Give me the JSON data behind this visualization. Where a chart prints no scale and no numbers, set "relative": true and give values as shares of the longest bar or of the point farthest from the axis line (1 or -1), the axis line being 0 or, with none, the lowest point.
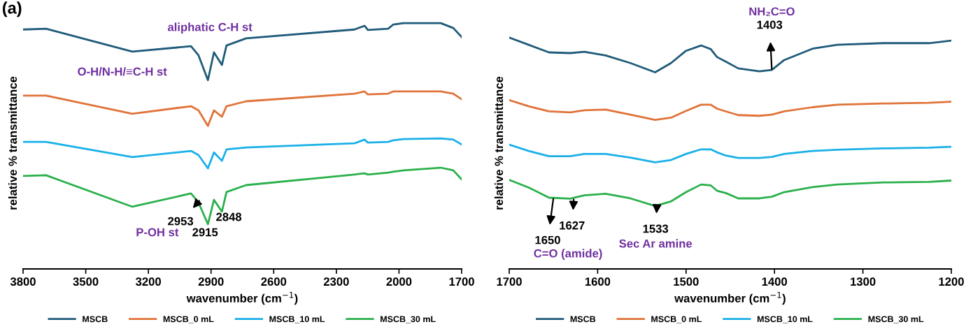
{
  "chart_data": [
    {
      "type": "line",
      "title": "(a)",
      "xlabel": "wavenumber (cm$^{−1}$)",
      "ylabel": "relative % transmittance",
      "relative": true,
      "legend": "bottom",
      "tick_labels": "x",
      "grid": false,
      "x": [
        3800,
        3690,
        3277,
        2996,
        2960,
        2915,
        2886,
        2848,
        2826,
        2732,
        2213,
        2165,
        2149,
        2052,
        2028,
        1978,
        1800,
        1740,
        1700
      ],
      "xlim": [
        3800,
        1700
      ],
      "xticks": [
        3800,
        3500,
        3200,
        2900,
        2600,
        2300,
        2000,
        1700
      ],
      "series": [
        {
          "name": "MSCB",
          "color": "#1f5b7a",
          "values": [
            0.974,
            0.977,
            0.884,
            0.906,
            0.869,
            0.768,
            0.881,
            0.83,
            0.909,
            0.938,
            0.974,
            0.989,
            0.972,
            0.977,
            0.994,
            1.0,
            1.0,
            0.98,
            0.943
          ]
        },
        {
          "name": "MSCB_0 mL",
          "color": "#e0733a",
          "values": [
            0.705,
            0.705,
            0.631,
            0.662,
            0.645,
            0.582,
            0.645,
            0.619,
            0.662,
            0.682,
            0.713,
            0.722,
            0.71,
            0.713,
            0.722,
            0.722,
            0.722,
            0.713,
            0.69
          ]
        },
        {
          "name": "MSCB_10 mL",
          "color": "#1ab0e8",
          "values": [
            0.517,
            0.517,
            0.455,
            0.48,
            0.463,
            0.409,
            0.474,
            0.44,
            0.486,
            0.494,
            0.511,
            0.526,
            0.514,
            0.517,
            0.523,
            0.528,
            0.531,
            0.526,
            0.506
          ]
        },
        {
          "name": "MSCB_30 mL",
          "color": "#2bb04c",
          "values": [
            0.378,
            0.381,
            0.253,
            0.307,
            0.27,
            0.182,
            0.281,
            0.233,
            0.313,
            0.341,
            0.384,
            0.389,
            0.384,
            0.392,
            0.395,
            0.401,
            0.412,
            0.401,
            0.364
          ]
        }
      ],
      "annotations": [
        "aliphatic C-H st",
        "O-H/N-H/≡C-H st",
        {
          "text": "2953",
          "x": 2953,
          "y": 0.28
        },
        "P-OH st",
        {
          "text": "2915",
          "x": 2915,
          "y": 0.182
        },
        {
          "text": "2848",
          "x": 2848,
          "y": 0.233
        }
      ]
    },
    {
      "type": "line",
      "xlabel": "wavenumber (cm$^{−1}$)",
      "ylabel": "relative % transmittance",
      "relative": true,
      "legend": "bottom",
      "tick_labels": "x",
      "grid": false,
      "x": [
        1700,
        1678,
        1655,
        1631,
        1615,
        1591,
        1563,
        1535,
        1517,
        1500,
        1483,
        1472,
        1465,
        1455,
        1441,
        1417,
        1403,
        1389,
        1357,
        1329,
        1277,
        1225,
        1200
      ],
      "xlim": [
        1700,
        1200
      ],
      "xticks": [
        1700,
        1600,
        1500,
        1400,
        1300,
        1200
      ],
      "series": [
        {
          "name": "MSCB",
          "color": "#1f5b7a",
          "values": [
            1.0,
            0.969,
            0.936,
            0.933,
            0.939,
            0.923,
            0.89,
            0.85,
            0.89,
            0.943,
            0.966,
            0.95,
            0.916,
            0.896,
            0.867,
            0.854,
            0.86,
            0.903,
            0.952,
            0.969,
            0.976,
            0.976,
            0.987
          ]
        },
        {
          "name": "MSCB_0 mL",
          "color": "#e0733a",
          "values": [
            0.73,
            0.703,
            0.681,
            0.677,
            0.686,
            0.689,
            0.667,
            0.644,
            0.654,
            0.683,
            0.71,
            0.71,
            0.693,
            0.681,
            0.665,
            0.662,
            0.667,
            0.681,
            0.699,
            0.71,
            0.715,
            0.718,
            0.723
          ]
        },
        {
          "name": "MSCB_10 mL",
          "color": "#1ab0e8",
          "values": [
            0.537,
            0.51,
            0.487,
            0.487,
            0.497,
            0.497,
            0.481,
            0.461,
            0.471,
            0.497,
            0.517,
            0.517,
            0.504,
            0.49,
            0.48,
            0.48,
            0.484,
            0.497,
            0.51,
            0.515,
            0.521,
            0.524,
            0.528
          ]
        },
        {
          "name": "MSCB_30 mL",
          "color": "#2bb04c",
          "values": [
            0.385,
            0.352,
            0.308,
            0.304,
            0.318,
            0.325,
            0.305,
            0.272,
            0.292,
            0.332,
            0.365,
            0.361,
            0.338,
            0.328,
            0.305,
            0.305,
            0.312,
            0.332,
            0.354,
            0.365,
            0.374,
            0.376,
            0.382
          ]
        }
      ],
      "annotations": [
        "NH₂C=O",
        {
          "text": "1403",
          "x": 1403,
          "y": 0.86
        },
        {
          "text": "1650",
          "x": 1650,
          "y": 0.307
        },
        {
          "text": "1627",
          "x": 1627,
          "y": 0.304
        },
        "C=O (amide)",
        {
          "text": "1533",
          "x": 1533,
          "y": 0.272
        },
        "Sec Ar amine"
      ]
    }
  ]
}
